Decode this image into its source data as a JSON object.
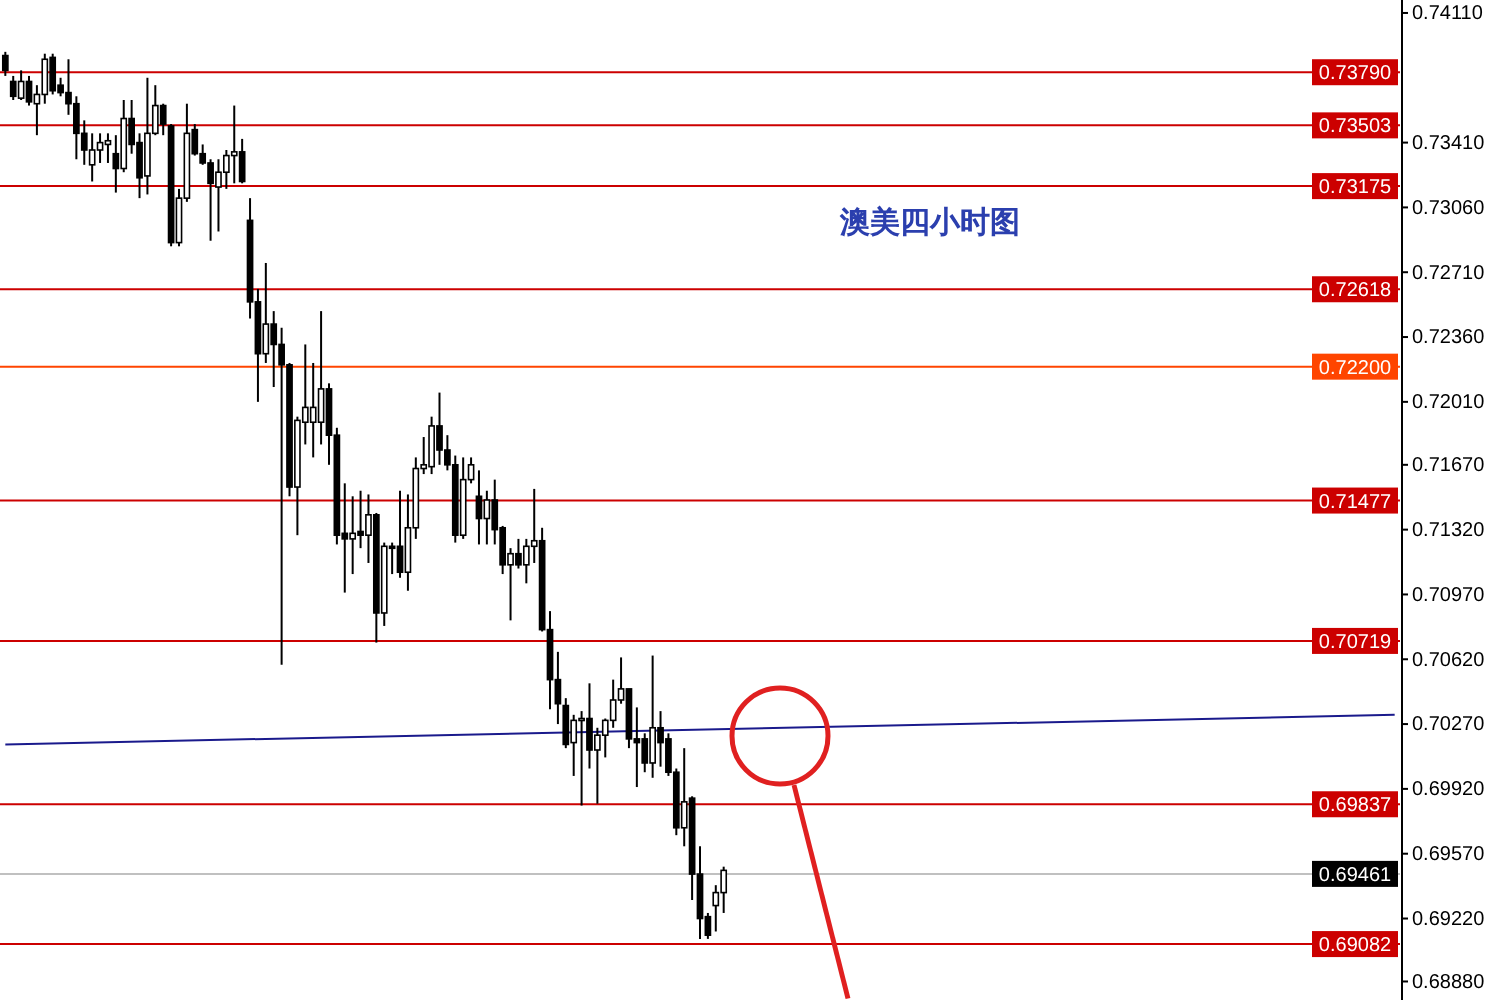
{
  "chart_data": {
    "type": "candlestick",
    "title": "澳美四小时图",
    "categories": [
      null,
      null,
      null,
      null,
      null,
      null,
      null,
      null,
      null,
      null,
      null,
      null,
      null,
      null,
      null,
      null,
      null,
      null,
      null,
      null,
      null,
      null,
      null,
      null,
      null,
      null,
      null,
      null,
      null,
      null,
      null,
      null,
      null,
      null,
      null,
      null,
      null,
      null,
      null,
      null,
      null,
      null,
      null,
      null,
      null,
      null,
      null,
      null,
      null,
      null,
      null,
      null,
      null,
      null,
      null,
      null,
      null,
      null,
      null,
      null,
      null,
      null,
      null,
      null,
      null,
      null,
      null,
      null,
      null,
      null,
      null,
      null,
      null,
      null,
      null,
      null,
      null,
      null,
      null,
      null,
      null,
      null,
      null,
      null,
      null,
      null,
      null,
      null,
      null,
      null,
      null,
      null,
      null,
      null,
      null,
      null,
      null,
      null,
      null,
      null,
      null,
      null,
      null,
      null,
      null,
      null,
      null,
      null,
      null,
      null,
      null,
      null,
      null,
      null,
      null,
      null,
      null,
      null,
      null,
      null,
      null,
      null,
      null,
      null,
      null,
      null,
      null,
      null,
      null,
      null,
      null,
      null,
      null,
      null,
      null,
      null,
      null,
      null,
      null,
      null,
      null,
      null,
      null,
      null,
      null,
      null,
      null,
      null,
      null,
      null,
      null,
      null,
      null,
      null,
      null,
      null,
      null,
      null,
      null,
      null,
      null,
      null,
      null,
      null,
      null,
      null,
      null,
      null,
      null,
      null,
      null,
      null,
      null,
      null,
      null,
      null,
      null
    ],
    "ohlc": [
      [
        0.7388,
        0.739,
        0.7377,
        0.738
      ],
      [
        0.7374,
        0.7377,
        0.7364,
        0.7366
      ],
      [
        0.7365,
        0.738,
        0.7364,
        0.7374
      ],
      [
        0.7374,
        0.7377,
        0.7361,
        0.7363
      ],
      [
        0.7362,
        0.7372,
        0.7345,
        0.7367
      ],
      [
        0.7367,
        0.7389,
        0.7362,
        0.7386
      ],
      [
        0.7387,
        0.7389,
        0.7367,
        0.7369
      ],
      [
        0.7372,
        0.7376,
        0.7366,
        0.7368
      ],
      [
        0.7368,
        0.7386,
        0.7356,
        0.7362
      ],
      [
        0.7362,
        0.7366,
        0.7332,
        0.7346
      ],
      [
        0.7346,
        0.7353,
        0.7329,
        0.7337
      ],
      [
        0.7329,
        0.7346,
        0.732,
        0.7337
      ],
      [
        0.7337,
        0.7346,
        0.733,
        0.7341
      ],
      [
        0.734,
        0.7346,
        0.733,
        0.7342
      ],
      [
        0.7335,
        0.7345,
        0.7314,
        0.7327
      ],
      [
        0.7327,
        0.7364,
        0.7325,
        0.7354
      ],
      [
        0.7354,
        0.7364,
        0.7335,
        0.734
      ],
      [
        0.7341,
        0.7346,
        0.7311,
        0.7322
      ],
      [
        0.7323,
        0.7376,
        0.7313,
        0.7346
      ],
      [
        0.7346,
        0.7372,
        0.7345,
        0.7361
      ],
      [
        0.7361,
        0.7362,
        0.7345,
        0.7351
      ],
      [
        0.735,
        0.7351,
        0.7285,
        0.7287
      ],
      [
        0.7287,
        0.7316,
        0.7285,
        0.7311
      ],
      [
        0.7311,
        0.7362,
        0.7309,
        0.7346
      ],
      [
        0.7348,
        0.7351,
        0.7334,
        0.7335
      ],
      [
        0.7335,
        0.734,
        0.7329,
        0.733
      ],
      [
        0.733,
        0.7332,
        0.7288,
        0.7319
      ],
      [
        0.7317,
        0.7332,
        0.7293,
        0.7325
      ],
      [
        0.7325,
        0.7337,
        0.7316,
        0.7334
      ],
      [
        0.7334,
        0.7361,
        0.7319,
        0.7336
      ],
      [
        0.7336,
        0.7343,
        0.7319,
        0.732
      ],
      [
        0.7299,
        0.7311,
        0.7246,
        0.7255
      ],
      [
        0.7255,
        0.7262,
        0.7201,
        0.7227
      ],
      [
        0.7227,
        0.7276,
        0.7222,
        0.7243
      ],
      [
        0.7243,
        0.725,
        0.7209,
        0.7232
      ],
      [
        0.7232,
        0.7241,
        0.7059,
        0.7221
      ],
      [
        0.7221,
        0.7222,
        0.715,
        0.7155
      ],
      [
        0.7155,
        0.7193,
        0.7129,
        0.7191
      ],
      [
        0.719,
        0.7232,
        0.7178,
        0.7198
      ],
      [
        0.719,
        0.7222,
        0.7171,
        0.7198
      ],
      [
        0.719,
        0.725,
        0.7178,
        0.7208
      ],
      [
        0.7208,
        0.7211,
        0.7167,
        0.7183
      ],
      [
        0.7183,
        0.7187,
        0.7124,
        0.7129
      ],
      [
        0.713,
        0.7157,
        0.7098,
        0.7127
      ],
      [
        0.7127,
        0.715,
        0.7108,
        0.713
      ],
      [
        0.7131,
        0.7153,
        0.7122,
        0.7129
      ],
      [
        0.7129,
        0.7151,
        0.7114,
        0.714
      ],
      [
        0.714,
        0.7141,
        0.7071,
        0.7087
      ],
      [
        0.7087,
        0.7125,
        0.708,
        0.7123
      ],
      [
        0.7123,
        0.7125,
        0.7108,
        0.7122
      ],
      [
        0.7123,
        0.7153,
        0.7106,
        0.7109
      ],
      [
        0.7109,
        0.7151,
        0.7099,
        0.7133
      ],
      [
        0.7133,
        0.7171,
        0.7127,
        0.7165
      ],
      [
        0.7165,
        0.7182,
        0.7162,
        0.7167
      ],
      [
        0.7166,
        0.7193,
        0.7162,
        0.7188
      ],
      [
        0.7188,
        0.7206,
        0.7167,
        0.7175
      ],
      [
        0.7175,
        0.7183,
        0.7164,
        0.7167
      ],
      [
        0.7167,
        0.7172,
        0.7125,
        0.7129
      ],
      [
        0.7129,
        0.7171,
        0.7127,
        0.7159
      ],
      [
        0.7159,
        0.7171,
        0.7157,
        0.7167
      ],
      [
        0.715,
        0.7164,
        0.7124,
        0.7138
      ],
      [
        0.7138,
        0.7153,
        0.7124,
        0.7148
      ],
      [
        0.7148,
        0.7159,
        0.7124,
        0.7132
      ],
      [
        0.7133,
        0.7134,
        0.7108,
        0.7113
      ],
      [
        0.7113,
        0.7122,
        0.7083,
        0.7119
      ],
      [
        0.7119,
        0.7127,
        0.7111,
        0.7113
      ],
      [
        0.7113,
        0.7127,
        0.7103,
        0.7123
      ],
      [
        0.7123,
        0.7154,
        0.7114,
        0.7126
      ],
      [
        0.7126,
        0.7133,
        0.7077,
        0.7078
      ],
      [
        0.7078,
        0.7088,
        0.7035,
        0.7051
      ],
      [
        0.7051,
        0.7066,
        0.7027,
        0.7038
      ],
      [
        0.7037,
        0.7041,
        0.7014,
        0.7016
      ],
      [
        0.7017,
        0.7032,
        0.6999,
        0.7029
      ],
      [
        0.7029,
        0.7034,
        0.6983,
        0.703
      ],
      [
        0.703,
        0.7049,
        0.7003,
        0.7013
      ],
      [
        0.7013,
        0.7025,
        0.6984,
        0.7021
      ],
      [
        0.7021,
        0.703,
        0.7009,
        0.7029
      ],
      [
        0.7029,
        0.7051,
        0.7025,
        0.704
      ],
      [
        0.704,
        0.7063,
        0.7038,
        0.7046
      ],
      [
        0.7046,
        0.7046,
        0.7014,
        0.7019
      ],
      [
        0.7019,
        0.7036,
        0.6993,
        0.7017
      ],
      [
        0.7019,
        0.7022,
        0.7001,
        0.7006
      ],
      [
        0.7006,
        0.7064,
        0.6998,
        0.7025
      ],
      [
        0.7025,
        0.7034,
        0.7004,
        0.7017
      ],
      [
        0.7019,
        0.7022,
        0.6999,
        0.7001
      ],
      [
        0.7001,
        0.7003,
        0.6967,
        0.6971
      ],
      [
        0.6971,
        0.7014,
        0.6961,
        0.6985
      ],
      [
        0.6987,
        0.6988,
        0.6932,
        0.6946
      ],
      [
        0.6946,
        0.6961,
        0.6911,
        0.6922
      ],
      [
        0.6923,
        0.6925,
        0.6911,
        0.6913
      ],
      [
        0.6929,
        0.694,
        0.6915,
        0.6936
      ],
      [
        0.6936,
        0.695,
        0.6925,
        0.6948
      ],
      null,
      null,
      null,
      null,
      null,
      null,
      null,
      null,
      null,
      null,
      null,
      null,
      null,
      null,
      null,
      null,
      null,
      null,
      null,
      null,
      null,
      null,
      null,
      null,
      null,
      null,
      null,
      null,
      null,
      null,
      null,
      null,
      null,
      null,
      null,
      null,
      null,
      null,
      null,
      null,
      null,
      null,
      null,
      null,
      null,
      null,
      null,
      null,
      null,
      null,
      null,
      null,
      null,
      null,
      null,
      null,
      null,
      null,
      null,
      null,
      null,
      null,
      null,
      null,
      null,
      null,
      null,
      null,
      null,
      null,
      null,
      null,
      null,
      null,
      null,
      null,
      null,
      null,
      null,
      null,
      null,
      null,
      null,
      null,
      null
    ],
    "series": [
      {
        "type": "line",
        "color": "#1a1a8c",
        "values": [
          0.7016,
          null,
          null,
          null,
          null,
          null,
          null,
          null,
          null,
          null,
          null,
          null,
          null,
          null,
          null,
          null,
          null,
          null,
          null,
          null,
          null,
          null,
          null,
          null,
          null,
          null,
          null,
          null,
          null,
          null,
          null,
          null,
          null,
          null,
          null,
          null,
          null,
          null,
          null,
          null,
          null,
          null,
          null,
          null,
          null,
          null,
          null,
          null,
          null,
          null,
          null,
          null,
          null,
          null,
          null,
          null,
          null,
          null,
          null,
          null,
          null,
          null,
          null,
          null,
          null,
          null,
          null,
          null,
          null,
          null,
          null,
          null,
          null,
          null,
          null,
          null,
          null,
          null,
          null,
          null,
          null,
          null,
          null,
          null,
          null,
          null,
          null,
          null,
          null,
          null,
          null,
          null,
          null,
          null,
          null,
          null,
          null,
          null,
          null,
          null,
          null,
          null,
          null,
          null,
          null,
          null,
          null,
          null,
          null,
          null,
          null,
          null,
          null,
          null,
          null,
          null,
          null,
          null,
          null,
          null,
          null,
          null,
          null,
          null,
          null,
          null,
          null,
          null,
          null,
          null,
          null,
          null,
          null,
          null,
          null,
          null,
          null,
          null,
          null,
          null,
          null,
          null,
          null,
          null,
          null,
          null,
          null,
          null,
          null,
          null,
          null,
          null,
          null,
          null,
          null,
          null,
          null,
          null,
          null,
          null,
          null,
          null,
          null,
          null,
          null,
          null,
          null,
          null,
          null,
          null,
          null,
          null,
          null,
          null,
          null,
          null,
          0.7032
        ]
      }
    ],
    "ylim": [
      0.6878,
      0.7418
    ],
    "yticks": [
      {
        "value": 0.7411,
        "label": "0.74110"
      },
      {
        "value": 0.7341,
        "label": "0.73410"
      },
      {
        "value": 0.7306,
        "label": "0.73060"
      },
      {
        "value": 0.7271,
        "label": "0.72710"
      },
      {
        "value": 0.7236,
        "label": "0.72360"
      },
      {
        "value": 0.7201,
        "label": "0.72010"
      },
      {
        "value": 0.7167,
        "label": "0.71670"
      },
      {
        "value": 0.7132,
        "label": "0.71320"
      },
      {
        "value": 0.7097,
        "label": "0.70970"
      },
      {
        "value": 0.7062,
        "label": "0.70620"
      },
      {
        "value": 0.7027,
        "label": "0.70270"
      },
      {
        "value": 0.6992,
        "label": "0.69920"
      },
      {
        "value": 0.6957,
        "label": "0.69570"
      },
      {
        "value": 0.6922,
        "label": "0.69220"
      },
      {
        "value": 0.6888,
        "label": "0.68880"
      }
    ],
    "ref_lines": [
      {
        "axis": "y",
        "value": 0.7379,
        "label": "0.73790",
        "color": "#cc0000"
      },
      {
        "axis": "y",
        "value": 0.73503,
        "label": "0.73503",
        "color": "#cc0000"
      },
      {
        "axis": "y",
        "value": 0.73175,
        "label": "0.73175",
        "color": "#cc0000"
      },
      {
        "axis": "y",
        "value": 0.72618,
        "label": "0.72618",
        "color": "#cc0000"
      },
      {
        "axis": "y",
        "value": 0.722,
        "label": "0.72200",
        "color": "#ff4500"
      },
      {
        "axis": "y",
        "value": 0.71477,
        "label": "0.71477",
        "color": "#cc0000"
      },
      {
        "axis": "y",
        "value": 0.70719,
        "label": "0.70719",
        "color": "#cc0000"
      },
      {
        "axis": "y",
        "value": 0.69837,
        "label": "0.69837",
        "color": "#cc0000"
      },
      {
        "axis": "y",
        "value": 0.69461,
        "label": "0.69461",
        "color": "#c0c0c0"
      },
      {
        "axis": "y",
        "value": 0.69082,
        "label": "0.69082",
        "color": "#cc0000"
      }
    ],
    "tick_labels": "y"
  }
}
